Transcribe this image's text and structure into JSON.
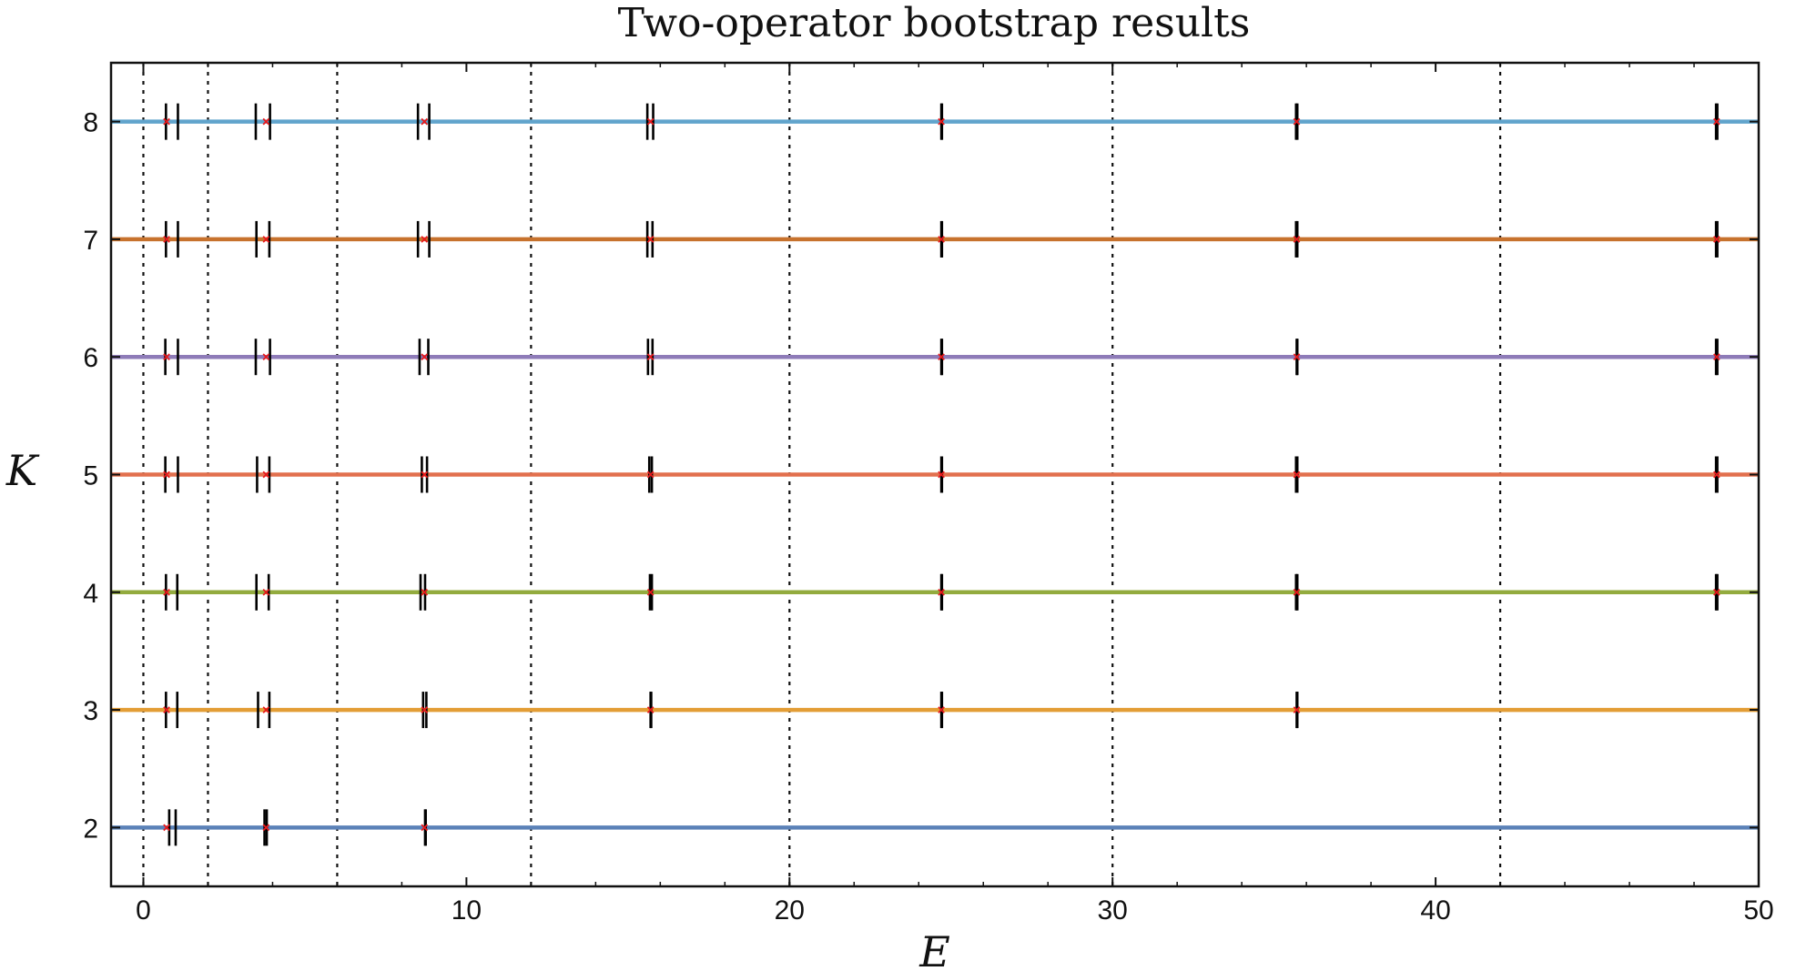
{
  "chart_data": {
    "type": "scatter",
    "title": "Two-operator bootstrap results",
    "xlabel": "E",
    "ylabel": "K",
    "xlim": [
      -1,
      50
    ],
    "ylim": [
      1.5,
      8.5
    ],
    "xticks": [
      0,
      10,
      20,
      30,
      40,
      50
    ],
    "xtick_labels": [
      "0",
      "10",
      "20",
      "30",
      "40",
      "50"
    ],
    "yticks": [
      2,
      3,
      4,
      5,
      6,
      7,
      8
    ],
    "ytick_labels": [
      "2",
      "3",
      "4",
      "5",
      "6",
      "7",
      "8"
    ],
    "grid": false,
    "reference_lines_x": [
      0,
      2,
      6,
      12,
      20,
      30,
      42
    ],
    "reference_line_style": "dotted black vertical",
    "series": [
      {
        "K": 2,
        "color": "#5b82b8",
        "bounds": [
          [
            0.8,
            1.0
          ],
          [
            3.75,
            3.82
          ],
          [
            8.72,
            8.74
          ]
        ],
        "exact_marks": [
          0.72,
          3.8,
          8.7
        ]
      },
      {
        "K": 3,
        "color": "#e39d35",
        "bounds": [
          [
            0.7,
            1.05
          ],
          [
            3.55,
            3.9
          ],
          [
            8.66,
            8.76
          ],
          [
            15.7,
            15.72
          ],
          [
            24.7,
            24.72
          ],
          [
            35.7,
            35.72
          ]
        ],
        "exact_marks": [
          0.72,
          3.8,
          8.7,
          15.7,
          24.7,
          35.7
        ]
      },
      {
        "K": 4,
        "color": "#93ab3e",
        "bounds": [
          [
            0.7,
            1.05
          ],
          [
            3.5,
            3.88
          ],
          [
            8.58,
            8.72
          ],
          [
            15.68,
            15.74
          ],
          [
            24.7,
            24.72
          ],
          [
            35.68,
            35.72
          ],
          [
            48.68,
            48.72
          ]
        ],
        "exact_marks": [
          0.72,
          3.8,
          8.7,
          15.7,
          24.7,
          35.7,
          48.7
        ]
      },
      {
        "K": 5,
        "color": "#e2704e",
        "bounds": [
          [
            0.68,
            1.07
          ],
          [
            3.52,
            3.9
          ],
          [
            8.62,
            8.78
          ],
          [
            15.66,
            15.74
          ],
          [
            24.7,
            24.72
          ],
          [
            35.68,
            35.72
          ],
          [
            48.68,
            48.72
          ]
        ],
        "exact_marks": [
          0.72,
          3.8,
          8.7,
          15.7,
          24.7,
          35.7,
          48.7
        ]
      },
      {
        "K": 6,
        "color": "#8e7bb8",
        "bounds": [
          [
            0.68,
            1.07
          ],
          [
            3.48,
            3.92
          ],
          [
            8.55,
            8.82
          ],
          [
            15.62,
            15.76
          ],
          [
            24.7,
            24.72
          ],
          [
            35.7,
            35.72
          ],
          [
            48.68,
            48.72
          ]
        ],
        "exact_marks": [
          0.72,
          3.8,
          8.7,
          15.7,
          24.7,
          35.7,
          48.7
        ]
      },
      {
        "K": 7,
        "color": "#c7722d",
        "bounds": [
          [
            0.7,
            1.07
          ],
          [
            3.5,
            3.9
          ],
          [
            8.5,
            8.85
          ],
          [
            15.6,
            15.76
          ],
          [
            24.7,
            24.72
          ],
          [
            35.68,
            35.72
          ],
          [
            48.68,
            48.72
          ]
        ],
        "exact_marks": [
          0.72,
          3.8,
          8.7,
          15.7,
          24.7,
          35.7,
          48.7
        ]
      },
      {
        "K": 8,
        "color": "#61a4cc",
        "bounds": [
          [
            0.7,
            1.07
          ],
          [
            3.48,
            3.92
          ],
          [
            8.5,
            8.85
          ],
          [
            15.6,
            15.78
          ],
          [
            24.7,
            24.72
          ],
          [
            35.68,
            35.72
          ],
          [
            48.68,
            48.72
          ]
        ],
        "exact_marks": [
          0.72,
          3.8,
          8.7,
          15.7,
          24.7,
          35.7,
          48.7
        ]
      }
    ]
  }
}
